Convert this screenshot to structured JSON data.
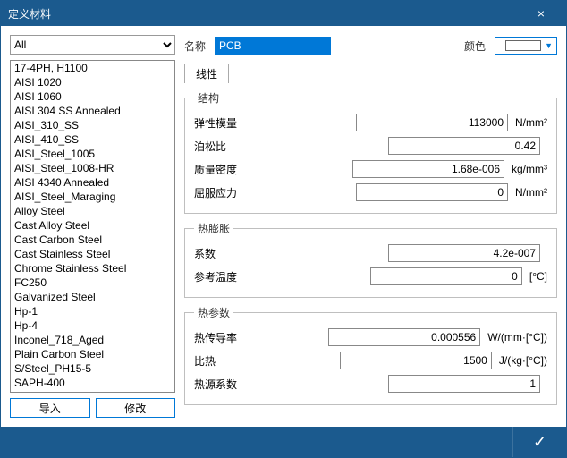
{
  "window": {
    "title": "定义材料"
  },
  "filter": {
    "selected": "All",
    "options": [
      "All"
    ]
  },
  "materials": [
    "17-4PH, H1100",
    "AISI 1020",
    "AISI 1060",
    "AISI 304 SS Annealed",
    "AISI_310_SS",
    "AISI_410_SS",
    "AISI_Steel_1005",
    "AISI_Steel_1008-HR",
    "AISI 4340 Annealed",
    "AISI_Steel_Maraging",
    "Alloy Steel",
    "Cast Alloy Steel",
    "Cast Carbon Steel",
    "Cast Stainless Steel",
    "Chrome Stainless Steel",
    "FC250",
    "Galvanized Steel",
    "Hp-1",
    "Hp-4",
    "Inconel_718_Aged",
    "Plain Carbon Steel",
    "S/Steel_PH15-5",
    "SAPH-400"
  ],
  "buttons": {
    "import": "导入",
    "modify": "修改"
  },
  "top": {
    "name_label": "名称",
    "name_value": "PCB",
    "color_label": "颜色"
  },
  "tabs": {
    "linear": "线性"
  },
  "groups": {
    "structure": {
      "legend": "结构",
      "elastic_modulus_label": "弹性模量",
      "elastic_modulus_value": "113000",
      "elastic_modulus_unit": "N/mm²",
      "poisson_label": "泊松比",
      "poisson_value": "0.42",
      "poisson_unit": "",
      "density_label": "质量密度",
      "density_value": "1.68e-006",
      "density_unit": "kg/mm³",
      "yield_label": "屈服应力",
      "yield_value": "0",
      "yield_unit": "N/mm²"
    },
    "thermal_exp": {
      "legend": "热膨胀",
      "coeff_label": "系数",
      "coeff_value": "4.2e-007",
      "coeff_unit": "",
      "reftemp_label": "参考温度",
      "reftemp_value": "0",
      "reftemp_unit": "[°C]"
    },
    "thermal": {
      "legend": "热参数",
      "conduct_label": "热传导率",
      "conduct_value": "0.000556",
      "conduct_unit": "W/(mm·[°C])",
      "specheat_label": "比热",
      "specheat_value": "1500",
      "specheat_unit": "J/(kg·[°C])",
      "heatsrc_label": "热源系数",
      "heatsrc_value": "1",
      "heatsrc_unit": ""
    }
  },
  "colors": {
    "titlebar_bg": "#1b5a8e",
    "accent": "#0078d7",
    "border": "#888888",
    "group_border": "#bfbfbf"
  }
}
